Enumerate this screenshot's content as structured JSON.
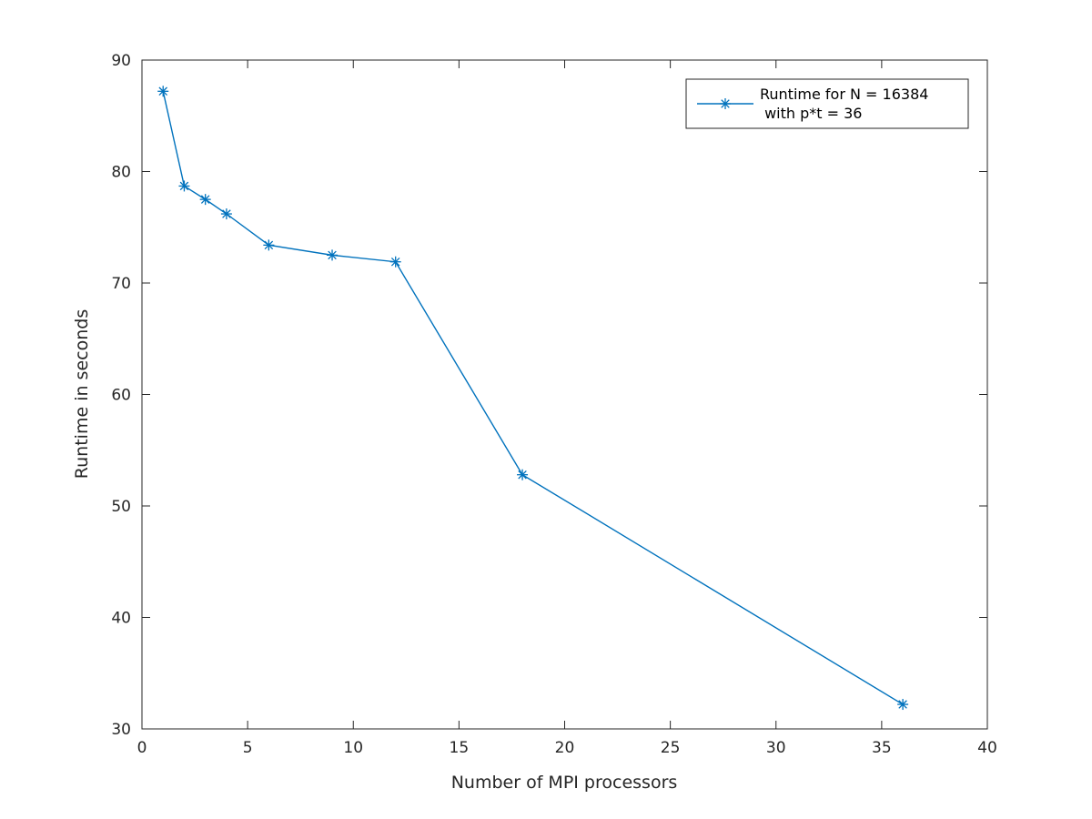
{
  "chart_data": {
    "type": "line",
    "title": "",
    "xlabel": "Number of MPI processors",
    "ylabel": "Runtime in seconds",
    "xlim": [
      0,
      40
    ],
    "ylim": [
      30,
      90
    ],
    "xticks": [
      0,
      5,
      10,
      15,
      20,
      25,
      30,
      35,
      40
    ],
    "yticks": [
      30,
      40,
      50,
      60,
      70,
      80,
      90
    ],
    "grid": false,
    "legend_position": "top-right",
    "series": [
      {
        "legend_line1": "Runtime for N = 16384",
        "legend_line2": " with p*t = 36",
        "color": "#0072BD",
        "marker": "asterisk",
        "x": [
          1,
          2,
          3,
          4,
          6,
          9,
          12,
          18,
          36
        ],
        "y": [
          87.2,
          78.7,
          77.5,
          76.2,
          73.4,
          72.5,
          71.9,
          52.8,
          32.2
        ]
      }
    ]
  }
}
